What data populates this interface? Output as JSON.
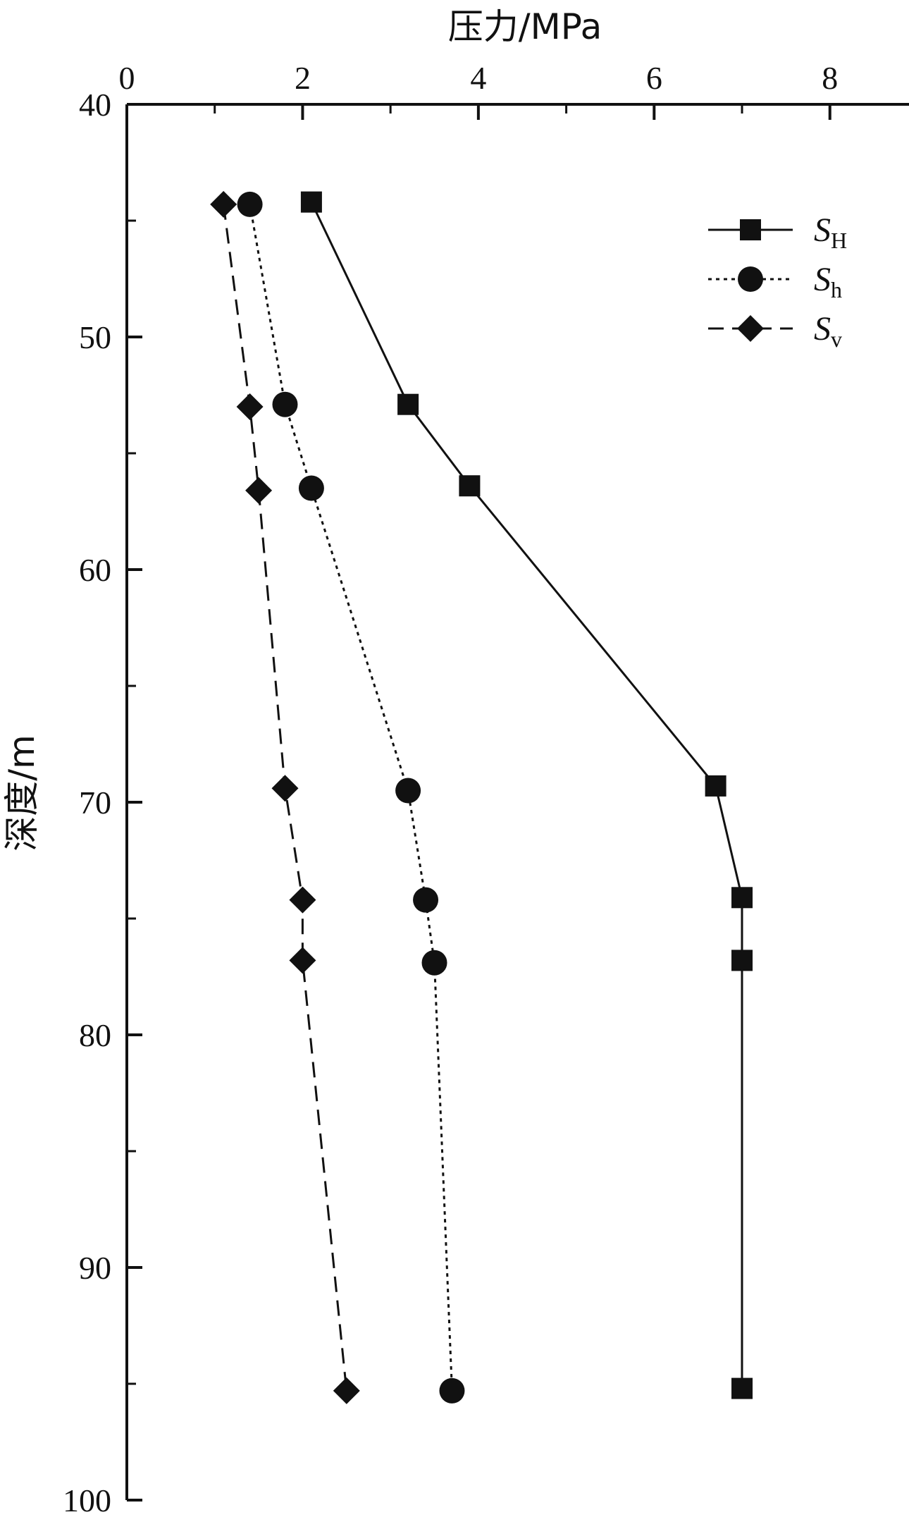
{
  "chart_data": {
    "type": "line",
    "xlabel": "压力/MPa",
    "ylabel": "深度/m",
    "x_axis_position": "top",
    "y_axis_inverted": true,
    "xlim": [
      0,
      8.9
    ],
    "ylim": [
      40,
      100
    ],
    "x_ticks": [
      0,
      2,
      4,
      6,
      8
    ],
    "x_minor_ticks": [
      1,
      3,
      5,
      7
    ],
    "y_ticks": [
      40,
      50,
      60,
      70,
      80,
      90,
      100
    ],
    "y_minor_ticks": [
      45,
      55,
      65,
      75,
      85,
      95
    ],
    "grid": false,
    "legend_position": "top-right",
    "series": [
      {
        "name": "S",
        "subscript": "H",
        "marker": "square",
        "line_style": "solid",
        "color": "#111111",
        "points": [
          {
            "x": 2.1,
            "y": 44.2
          },
          {
            "x": 3.2,
            "y": 52.9
          },
          {
            "x": 3.9,
            "y": 56.4
          },
          {
            "x": 6.7,
            "y": 69.3
          },
          {
            "x": 7.0,
            "y": 74.1
          },
          {
            "x": 7.0,
            "y": 76.8
          },
          {
            "x": 7.0,
            "y": 95.2
          }
        ]
      },
      {
        "name": "S",
        "subscript": "h",
        "marker": "circle",
        "line_style": "dotted",
        "color": "#111111",
        "points": [
          {
            "x": 1.4,
            "y": 44.3
          },
          {
            "x": 1.8,
            "y": 52.9
          },
          {
            "x": 2.1,
            "y": 56.5
          },
          {
            "x": 3.2,
            "y": 69.5
          },
          {
            "x": 3.4,
            "y": 74.2
          },
          {
            "x": 3.5,
            "y": 76.9
          },
          {
            "x": 3.7,
            "y": 95.3
          }
        ]
      },
      {
        "name": "S",
        "subscript": "v",
        "marker": "diamond",
        "line_style": "dashed",
        "color": "#111111",
        "points": [
          {
            "x": 1.1,
            "y": 44.3
          },
          {
            "x": 1.4,
            "y": 53.0
          },
          {
            "x": 1.5,
            "y": 56.6
          },
          {
            "x": 1.8,
            "y": 69.4
          },
          {
            "x": 2.0,
            "y": 74.2
          },
          {
            "x": 2.0,
            "y": 76.8
          },
          {
            "x": 2.5,
            "y": 95.3
          }
        ]
      }
    ]
  }
}
